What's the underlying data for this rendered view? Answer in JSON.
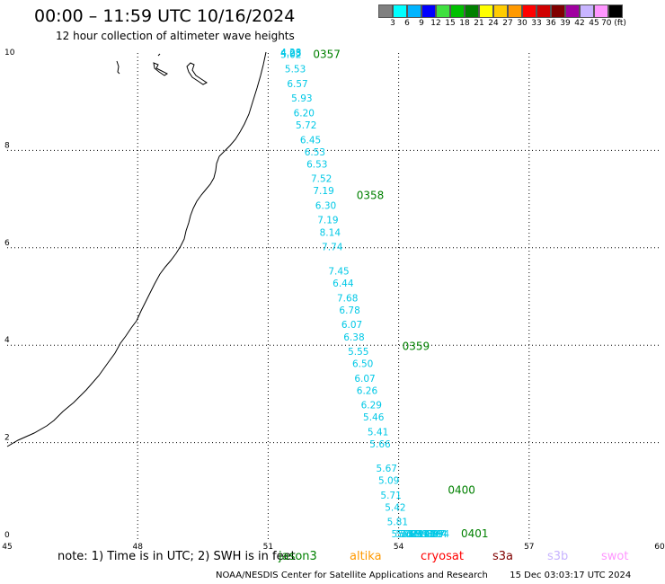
{
  "header": {
    "title": "00:00 – 11:59 UTC 10/16/2024",
    "subtitle": "12 hour collection of altimeter wave heights"
  },
  "legend": {
    "labels": [
      "3",
      "6",
      "9",
      "12",
      "15",
      "18",
      "21",
      "24",
      "27",
      "30",
      "33",
      "36",
      "39",
      "42",
      "45",
      "70 (ft)"
    ],
    "colors": [
      "#808080",
      "#00ffff",
      "#00b4ff",
      "#0000ff",
      "#40e040",
      "#00c000",
      "#008000",
      "#ffff00",
      "#ffcc00",
      "#ff9900",
      "#ff0000",
      "#d00000",
      "#800000",
      "#a000a0",
      "#c8b4ff",
      "#ff96ff",
      "#000000"
    ]
  },
  "axes": {
    "x_ticks": [
      45,
      48,
      51,
      54,
      57,
      60
    ],
    "y_ticks": [
      0,
      2,
      4,
      6,
      8,
      10
    ],
    "x_range": [
      45,
      60
    ],
    "y_range": [
      0,
      10
    ]
  },
  "passes": [
    {
      "label": "0357",
      "lon": 51.95,
      "lat": 9.9
    },
    {
      "label": "0358",
      "lon": 52.95,
      "lat": 7.0
    },
    {
      "label": "0359",
      "lon": 54.0,
      "lat": 3.9
    },
    {
      "label": "0400",
      "lon": 55.05,
      "lat": 0.95
    },
    {
      "label": "0401",
      "lon": 55.35,
      "lat": 0.0
    }
  ],
  "wave_heights": [
    {
      "v": "4.28",
      "lon": 51.2,
      "lat": 10.0
    },
    {
      "v": "4.93",
      "lon": 51.2,
      "lat": 9.93
    },
    {
      "v": "5.02",
      "lon": 51.2,
      "lat": 9.9
    },
    {
      "v": "5.53",
      "lon": 51.3,
      "lat": 9.6
    },
    {
      "v": "6.57",
      "lon": 51.35,
      "lat": 9.3
    },
    {
      "v": "5.93",
      "lon": 51.45,
      "lat": 9.0
    },
    {
      "v": "6.20",
      "lon": 51.5,
      "lat": 8.7
    },
    {
      "v": "5.72",
      "lon": 51.55,
      "lat": 8.45
    },
    {
      "v": "6.45",
      "lon": 51.65,
      "lat": 8.15
    },
    {
      "v": "6.53",
      "lon": 51.75,
      "lat": 7.9
    },
    {
      "v": "6.53",
      "lon": 51.8,
      "lat": 7.65
    },
    {
      "v": "7.52",
      "lon": 51.9,
      "lat": 7.35
    },
    {
      "v": "7.19",
      "lon": 51.95,
      "lat": 7.1
    },
    {
      "v": "6.30",
      "lon": 52.0,
      "lat": 6.8
    },
    {
      "v": "7.19",
      "lon": 52.05,
      "lat": 6.5
    },
    {
      "v": "8.14",
      "lon": 52.1,
      "lat": 6.25
    },
    {
      "v": "7.74",
      "lon": 52.15,
      "lat": 5.95
    },
    {
      "v": "7.45",
      "lon": 52.3,
      "lat": 5.45
    },
    {
      "v": "6.44",
      "lon": 52.4,
      "lat": 5.2
    },
    {
      "v": "7.68",
      "lon": 52.5,
      "lat": 4.9
    },
    {
      "v": "6.78",
      "lon": 52.55,
      "lat": 4.65
    },
    {
      "v": "6.07",
      "lon": 52.6,
      "lat": 4.35
    },
    {
      "v": "6.38",
      "lon": 52.65,
      "lat": 4.1
    },
    {
      "v": "5.55",
      "lon": 52.75,
      "lat": 3.8
    },
    {
      "v": "6.50",
      "lon": 52.85,
      "lat": 3.55
    },
    {
      "v": "6.07",
      "lon": 52.9,
      "lat": 3.25
    },
    {
      "v": "6.26",
      "lon": 52.95,
      "lat": 3.0
    },
    {
      "v": "6.29",
      "lon": 53.05,
      "lat": 2.7
    },
    {
      "v": "5.46",
      "lon": 53.1,
      "lat": 2.45
    },
    {
      "v": "5.41",
      "lon": 53.2,
      "lat": 2.15
    },
    {
      "v": "5.66",
      "lon": 53.25,
      "lat": 1.9
    },
    {
      "v": "5.67",
      "lon": 53.4,
      "lat": 1.4
    },
    {
      "v": "5.09",
      "lon": 53.45,
      "lat": 1.15
    },
    {
      "v": "5.71",
      "lon": 53.5,
      "lat": 0.85
    },
    {
      "v": "5.42",
      "lon": 53.6,
      "lat": 0.6
    },
    {
      "v": "5.81",
      "lon": 53.65,
      "lat": 0.3
    },
    {
      "v": "5.70",
      "lon": 53.75,
      "lat": 0.05
    },
    {
      "v": "5.02",
      "lon": 53.85,
      "lat": -0.2
    },
    {
      "v": "5.31",
      "lon": 53.9,
      "lat": -0.5
    },
    {
      "v": "5.17",
      "lon": 53.95,
      "lat": -0.75
    },
    {
      "v": "5.93",
      "lon": 54.0,
      "lat": -1.0
    },
    {
      "v": "5.99",
      "lon": 54.1,
      "lat": -1.3
    },
    {
      "v": "6.19",
      "lon": 54.15,
      "lat": -1.6
    },
    {
      "v": "6.11",
      "lon": 54.25,
      "lat": -1.85
    },
    {
      "v": "5.46",
      "lon": 54.3,
      "lat": -2.15
    },
    {
      "v": "5.30",
      "lon": 54.35,
      "lat": -2.4
    },
    {
      "v": "5.88",
      "lon": 54.35,
      "lat": -2.45
    },
    {
      "v": "5.73",
      "lon": 54.45,
      "lat": -2.7
    },
    {
      "v": "4.97",
      "lon": 54.5,
      "lat": -3.0
    },
    {
      "v": "5.04",
      "lon": 54.55,
      "lat": -3.25
    },
    {
      "v": "3.94",
      "lon": 54.6,
      "lat": -3.55
    }
  ],
  "footer": {
    "note": "note: 1) Time is in UTC; 2) SWH is in feet",
    "missions": [
      {
        "name": "jason3",
        "color": "#008000"
      },
      {
        "name": "altika",
        "color": "#ff9900"
      },
      {
        "name": "cryosat",
        "color": "#ff0000"
      },
      {
        "name": "s3a",
        "color": "#800000"
      },
      {
        "name": "s3b",
        "color": "#c8b4ff"
      },
      {
        "name": "swot",
        "color": "#ff96ff"
      }
    ],
    "credit": "NOAA/NESDIS Center for Satellite Applications and Research",
    "generated": "15 Dec 03:03:17 UTC 2024"
  },
  "colors": {
    "swh": "#00c8e6",
    "pass_label": "#008000",
    "coast": "#000000",
    "grid": "#000000"
  }
}
